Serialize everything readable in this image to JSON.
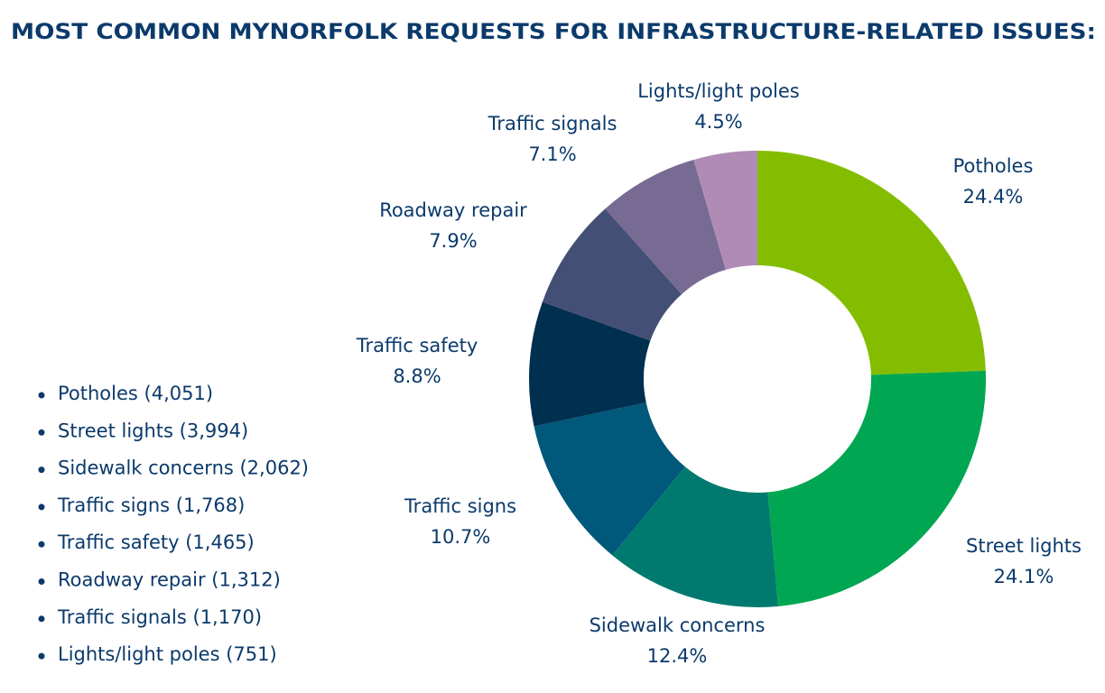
{
  "chart_data": {
    "type": "donut",
    "title": "MOST COMMON MYNORFOLK REQUESTS FOR INFRASTRUCTURE-RELATED ISSUES:",
    "categories": [
      "Potholes",
      "Street lights",
      "Sidewalk concerns",
      "Traffic signs",
      "Traffic safety",
      "Roadway repair",
      "Traffic signals",
      "Lights/light poles"
    ],
    "values": [
      24.4,
      24.1,
      12.4,
      10.7,
      8.8,
      7.9,
      7.1,
      4.5
    ],
    "value_labels": [
      "24.4%",
      "24.1%",
      "12.4%",
      "10.7%",
      "8.8%",
      "7.9%",
      "7.1%",
      "4.5%"
    ],
    "colors": [
      "#84bd00",
      "#00a651",
      "#007a6e",
      "#00587a",
      "#002f4f",
      "#434f75",
      "#776a93",
      "#b08bb5"
    ],
    "list": [
      "Potholes (4,051)",
      "Street lights (3,994)",
      "Sidewalk concerns (2,062)",
      "Traffic signs (1,768)",
      "Traffic safety (1,465)",
      "Roadway repair (1,312)",
      "Traffic signals (1,170)",
      "Lights/light poles (751)"
    ]
  }
}
